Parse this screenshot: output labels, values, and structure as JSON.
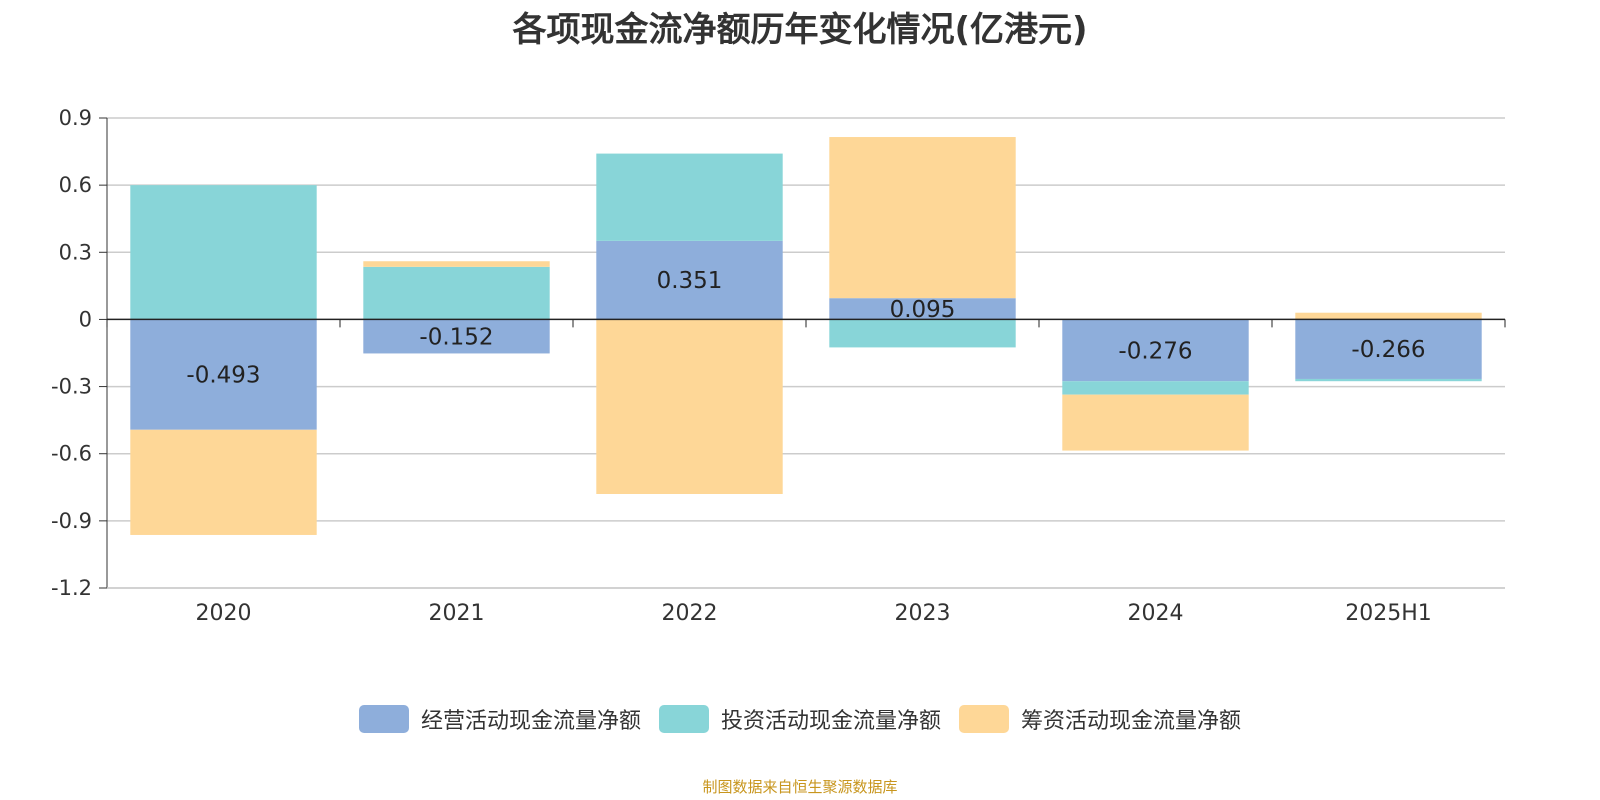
{
  "title": "各项现金流净额历年变化情况(亿港元)",
  "source": "制图数据来自恒生聚源数据库",
  "chart_data": {
    "type": "bar",
    "stacked": true,
    "title": "各项现金流净额历年变化情况(亿港元)",
    "xlabel": "",
    "ylabel": "",
    "categories": [
      "2020",
      "2021",
      "2022",
      "2023",
      "2024",
      "2025H1"
    ],
    "ylim": [
      -1.2,
      0.9
    ],
    "yticks": [
      "0.9",
      "0.6",
      "0.3",
      "0",
      "-0.3",
      "-0.6",
      "-0.9",
      "-1.2"
    ],
    "ytick_values": [
      0.9,
      0.6,
      0.3,
      0,
      -0.3,
      -0.6,
      -0.9,
      -1.2
    ],
    "grid": true,
    "legend_position": "bottom",
    "series": [
      {
        "name": "经营活动现金流量净额",
        "color": "#8eaedb",
        "values": [
          -0.493,
          -0.152,
          0.351,
          0.095,
          -0.276,
          -0.266
        ],
        "data_labels": [
          "-0.493",
          "-0.152",
          "0.351",
          "0.095",
          "-0.276",
          "-0.266"
        ]
      },
      {
        "name": "投资活动现金流量净额",
        "color": "#88d5d8",
        "values": [
          0.6,
          0.235,
          0.39,
          -0.125,
          -0.06,
          -0.01
        ]
      },
      {
        "name": "筹资活动现金流量净额",
        "color": "#fed797",
        "values": [
          -0.47,
          0.025,
          -0.78,
          0.72,
          -0.25,
          0.03
        ]
      }
    ]
  }
}
